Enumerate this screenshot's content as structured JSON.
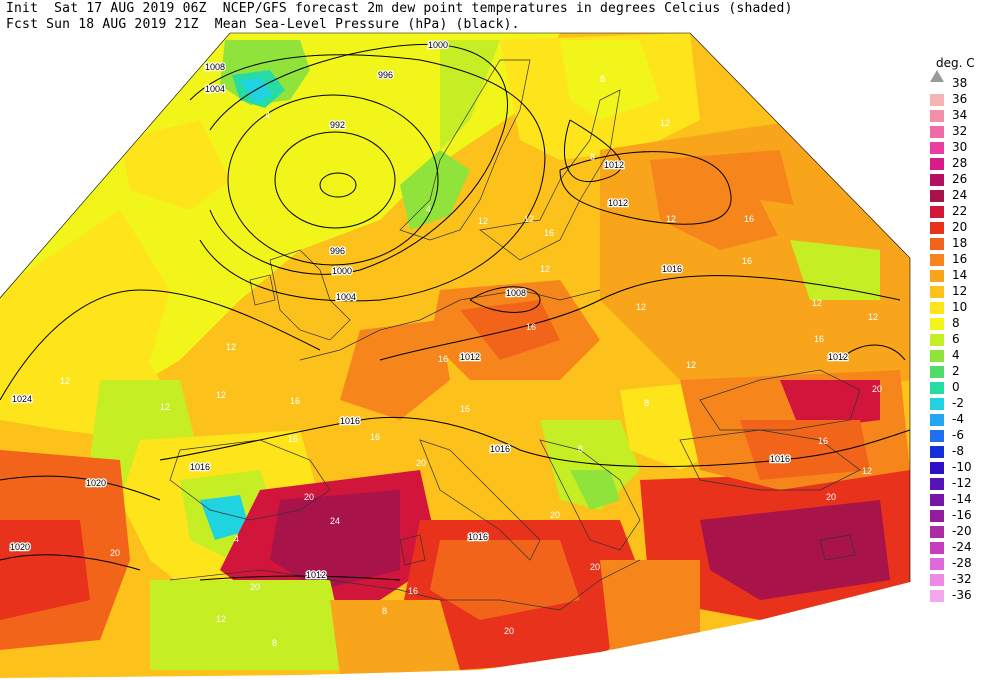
{
  "header": {
    "line1": "Init  Sat 17 AUG 2019 06Z  NCEP/GFS forecast 2m dew point temperatures in degrees Celcius (shaded)",
    "line2": "Fcst Sun 18 AUG 2019 21Z  Mean Sea-Level Pressure (hPa) (black)."
  },
  "legend": {
    "title": "deg. C",
    "entries": [
      {
        "label": "38",
        "color": "#9a9a9a"
      },
      {
        "label": "36",
        "color": "#f7b2b2"
      },
      {
        "label": "34",
        "color": "#f48fa8"
      },
      {
        "label": "32",
        "color": "#f06aa6"
      },
      {
        "label": "30",
        "color": "#ec3c9f"
      },
      {
        "label": "28",
        "color": "#d81b86"
      },
      {
        "label": "26",
        "color": "#b51160"
      },
      {
        "label": "24",
        "color": "#a8134a"
      },
      {
        "label": "22",
        "color": "#d2153a"
      },
      {
        "label": "20",
        "color": "#e8321c"
      },
      {
        "label": "18",
        "color": "#f2641a"
      },
      {
        "label": "16",
        "color": "#f6861c"
      },
      {
        "label": "14",
        "color": "#f9a51c"
      },
      {
        "label": "12",
        "color": "#fcc11b"
      },
      {
        "label": "10",
        "color": "#fde41b"
      },
      {
        "label": "8",
        "color": "#f2f51a"
      },
      {
        "label": "6",
        "color": "#c6ee24"
      },
      {
        "label": "4",
        "color": "#8fe33a"
      },
      {
        "label": "2",
        "color": "#4fdc69"
      },
      {
        "label": "0",
        "color": "#27dca3"
      },
      {
        "label": "-2",
        "color": "#1fd4e0"
      },
      {
        "label": "-4",
        "color": "#24a6f2"
      },
      {
        "label": "-6",
        "color": "#1f6ff0"
      },
      {
        "label": "-8",
        "color": "#1330dc"
      },
      {
        "label": "-10",
        "color": "#2b10c7"
      },
      {
        "label": "-12",
        "color": "#5712b8"
      },
      {
        "label": "-14",
        "color": "#7914a8"
      },
      {
        "label": "-16",
        "color": "#931c9c"
      },
      {
        "label": "-20",
        "color": "#ad2ca5"
      },
      {
        "label": "-24",
        "color": "#c83cc0"
      },
      {
        "label": "-28",
        "color": "#df68dc"
      },
      {
        "label": "-32",
        "color": "#ec8ae6"
      },
      {
        "label": "-36",
        "color": "#f3a8ee"
      }
    ]
  },
  "isobar_labels": [
    {
      "text": "1000"
    },
    {
      "text": "996"
    },
    {
      "text": "992"
    },
    {
      "text": "1008"
    },
    {
      "text": "1004"
    },
    {
      "text": "996"
    },
    {
      "text": "1000"
    },
    {
      "text": "1004"
    },
    {
      "text": "1012"
    },
    {
      "text": "1012"
    },
    {
      "text": "1016"
    },
    {
      "text": "1008"
    },
    {
      "text": "1012"
    },
    {
      "text": "1024"
    },
    {
      "text": "1016"
    },
    {
      "text": "1016"
    },
    {
      "text": "1016"
    },
    {
      "text": "1020"
    },
    {
      "text": "1020"
    },
    {
      "text": "1016"
    },
    {
      "text": "1012"
    },
    {
      "text": "1012"
    },
    {
      "text": "1016"
    }
  ],
  "dewpoint_labels": [
    "8",
    "4",
    "12",
    "12",
    "12",
    "12",
    "16",
    "16",
    "12",
    "16",
    "12",
    "12",
    "12",
    "16",
    "16",
    "12",
    "12",
    "16",
    "12",
    "12",
    "16",
    "16",
    "16",
    "16",
    "20",
    "20",
    "20",
    "20",
    "20",
    "20",
    "20",
    "20",
    "12",
    "8",
    "8",
    "4",
    "8",
    "16",
    "20",
    "24",
    "16",
    "12",
    "8",
    "8",
    "4",
    "12"
  ]
}
